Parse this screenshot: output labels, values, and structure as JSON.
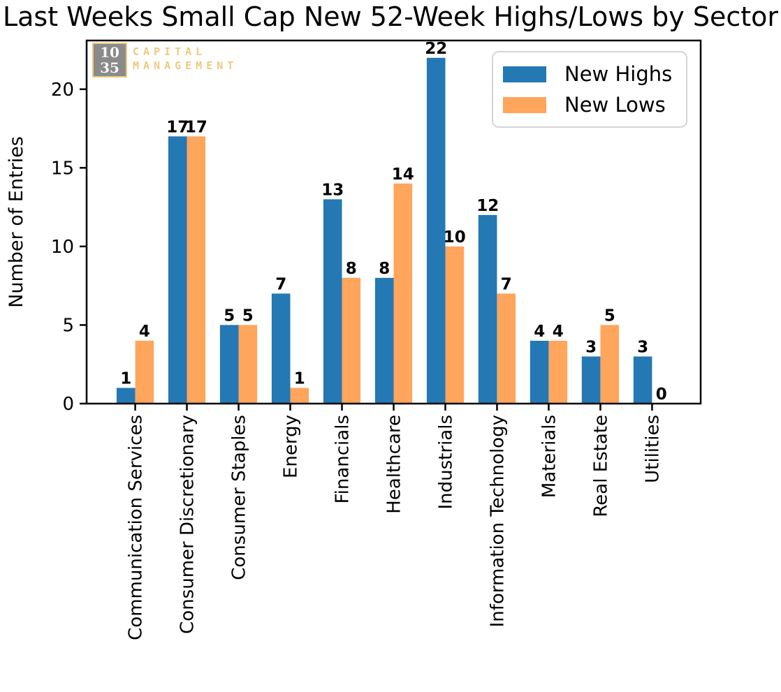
{
  "chart_data": {
    "type": "bar",
    "title": "Last Weeks Small Cap New 52-Week Highs/Lows by Sector",
    "xlabel": "",
    "ylabel": "Number of Entries",
    "categories": [
      "Communication Services",
      "Consumer Discretionary",
      "Consumer Staples",
      "Energy",
      "Financials",
      "Healthcare",
      "Industrials",
      "Information Technology",
      "Materials",
      "Real Estate",
      "Utilities"
    ],
    "series": [
      {
        "name": "New Highs",
        "color": "#2478b4",
        "values": [
          1,
          17,
          5,
          7,
          13,
          8,
          22,
          12,
          4,
          3,
          3
        ]
      },
      {
        "name": "New Lows",
        "color": "#ffa55c",
        "values": [
          4,
          17,
          5,
          1,
          8,
          14,
          10,
          7,
          4,
          5,
          0
        ]
      }
    ],
    "yticks": [
      0,
      5,
      10,
      15,
      20
    ],
    "ylim": [
      0,
      23.1
    ],
    "grid": false,
    "legend_position": "upper right",
    "bar_value_labels": true
  },
  "watermark": {
    "box_line1": "10",
    "box_line2": "35",
    "text_line1": "CAPITAL",
    "text_line2": "MANAGEMENT",
    "box_color": "#8a8a8a",
    "accent_color": "#ecca7f"
  }
}
